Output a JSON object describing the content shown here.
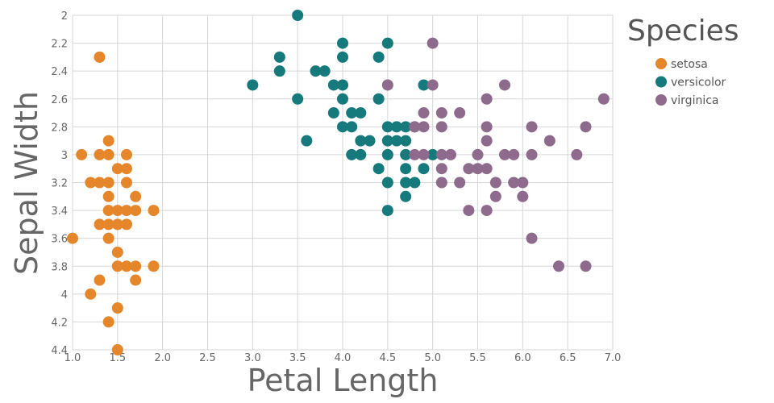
{
  "chart_data": {
    "type": "scatter",
    "xlabel": "Petal Length",
    "ylabel": "Sepal Width",
    "xlim": [
      1.0,
      7.0
    ],
    "ylim": [
      2.0,
      4.4
    ],
    "y_inverted": true,
    "grid": true,
    "legend_position": "top-right",
    "legend_title": "Species",
    "x_ticks": [
      "1.0",
      "1.5",
      "2.0",
      "2.5",
      "3.0",
      "3.5",
      "4.0",
      "4.5",
      "5.0",
      "5.5",
      "6.0",
      "6.5",
      "7.0"
    ],
    "y_ticks": [
      "2",
      "2.2",
      "2.4",
      "2.6",
      "2.8",
      "3",
      "3.2",
      "3.4",
      "3.6",
      "3.8",
      "4",
      "4.2",
      "4.4"
    ],
    "series": [
      {
        "name": "setosa",
        "color": "#e6862a",
        "points": [
          [
            1.3,
            2.3
          ],
          [
            1.1,
            3.0
          ],
          [
            1.3,
            3.0
          ],
          [
            1.4,
            3.0
          ],
          [
            1.4,
            2.9
          ],
          [
            1.6,
            3.0
          ],
          [
            1.2,
            3.2
          ],
          [
            1.3,
            3.2
          ],
          [
            1.4,
            3.2
          ],
          [
            1.6,
            3.2
          ],
          [
            1.5,
            3.1
          ],
          [
            1.6,
            3.1
          ],
          [
            1.4,
            3.3
          ],
          [
            1.7,
            3.3
          ],
          [
            1.4,
            3.4
          ],
          [
            1.5,
            3.4
          ],
          [
            1.6,
            3.4
          ],
          [
            1.7,
            3.4
          ],
          [
            1.9,
            3.4
          ],
          [
            1.3,
            3.5
          ],
          [
            1.4,
            3.5
          ],
          [
            1.5,
            3.5
          ],
          [
            1.6,
            3.5
          ],
          [
            1.0,
            3.6
          ],
          [
            1.4,
            3.6
          ],
          [
            1.5,
            3.7
          ],
          [
            1.5,
            3.8
          ],
          [
            1.6,
            3.8
          ],
          [
            1.7,
            3.8
          ],
          [
            1.9,
            3.8
          ],
          [
            1.3,
            3.9
          ],
          [
            1.7,
            3.9
          ],
          [
            1.2,
            4.0
          ],
          [
            1.5,
            4.1
          ],
          [
            1.4,
            4.2
          ],
          [
            1.5,
            4.4
          ]
        ]
      },
      {
        "name": "versicolor",
        "color": "#16797b",
        "points": [
          [
            3.5,
            2.0
          ],
          [
            4.0,
            2.2
          ],
          [
            4.5,
            2.2
          ],
          [
            3.3,
            2.3
          ],
          [
            4.0,
            2.3
          ],
          [
            4.4,
            2.3
          ],
          [
            3.3,
            2.4
          ],
          [
            3.7,
            2.4
          ],
          [
            3.8,
            2.4
          ],
          [
            3.0,
            2.5
          ],
          [
            3.9,
            2.5
          ],
          [
            4.0,
            2.5
          ],
          [
            4.9,
            2.5
          ],
          [
            3.5,
            2.6
          ],
          [
            4.0,
            2.6
          ],
          [
            4.4,
            2.6
          ],
          [
            3.9,
            2.7
          ],
          [
            4.1,
            2.7
          ],
          [
            4.2,
            2.7
          ],
          [
            4.0,
            2.8
          ],
          [
            4.1,
            2.8
          ],
          [
            4.5,
            2.8
          ],
          [
            4.6,
            2.8
          ],
          [
            4.7,
            2.8
          ],
          [
            4.8,
            2.8
          ],
          [
            3.6,
            2.9
          ],
          [
            4.2,
            2.9
          ],
          [
            4.3,
            2.9
          ],
          [
            4.5,
            2.9
          ],
          [
            4.6,
            2.9
          ],
          [
            4.7,
            2.9
          ],
          [
            4.1,
            3.0
          ],
          [
            4.2,
            3.0
          ],
          [
            4.5,
            3.0
          ],
          [
            4.7,
            3.0
          ],
          [
            5.0,
            3.0
          ],
          [
            4.4,
            3.1
          ],
          [
            4.7,
            3.1
          ],
          [
            4.9,
            3.1
          ],
          [
            4.5,
            3.2
          ],
          [
            4.7,
            3.2
          ],
          [
            4.8,
            3.2
          ],
          [
            4.7,
            3.3
          ],
          [
            4.5,
            3.4
          ]
        ]
      },
      {
        "name": "virginica",
        "color": "#8e6a8c",
        "points": [
          [
            5.0,
            2.2
          ],
          [
            4.5,
            2.5
          ],
          [
            5.0,
            2.5
          ],
          [
            5.8,
            2.5
          ],
          [
            6.9,
            2.6
          ],
          [
            5.6,
            2.6
          ],
          [
            4.9,
            2.7
          ],
          [
            5.1,
            2.7
          ],
          [
            5.3,
            2.7
          ],
          [
            4.8,
            2.8
          ],
          [
            4.9,
            2.8
          ],
          [
            5.1,
            2.8
          ],
          [
            5.6,
            2.8
          ],
          [
            6.1,
            2.8
          ],
          [
            6.7,
            2.8
          ],
          [
            5.6,
            2.9
          ],
          [
            6.3,
            2.9
          ],
          [
            4.8,
            3.0
          ],
          [
            4.9,
            3.0
          ],
          [
            5.1,
            3.0
          ],
          [
            5.2,
            3.0
          ],
          [
            5.5,
            3.0
          ],
          [
            5.8,
            3.0
          ],
          [
            5.9,
            3.0
          ],
          [
            6.1,
            3.0
          ],
          [
            6.6,
            3.0
          ],
          [
            5.1,
            3.1
          ],
          [
            5.4,
            3.1
          ],
          [
            5.5,
            3.1
          ],
          [
            5.6,
            3.1
          ],
          [
            5.1,
            3.2
          ],
          [
            5.3,
            3.2
          ],
          [
            5.7,
            3.2
          ],
          [
            5.9,
            3.2
          ],
          [
            6.0,
            3.2
          ],
          [
            5.7,
            3.3
          ],
          [
            6.0,
            3.3
          ],
          [
            5.4,
            3.4
          ],
          [
            5.6,
            3.4
          ],
          [
            6.1,
            3.6
          ],
          [
            6.4,
            3.8
          ],
          [
            6.7,
            3.8
          ]
        ]
      }
    ]
  }
}
